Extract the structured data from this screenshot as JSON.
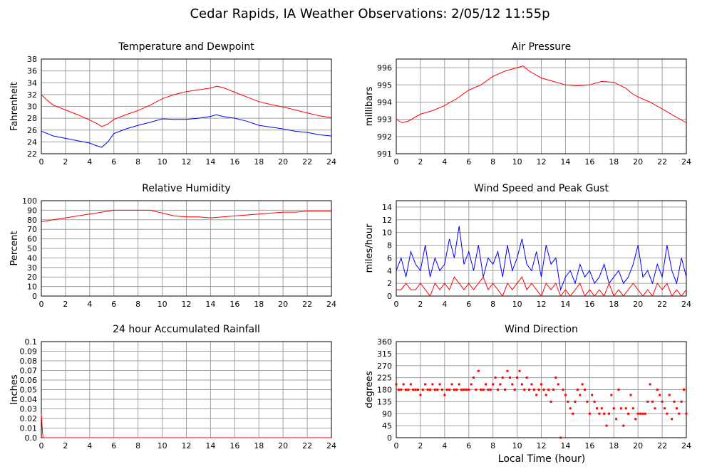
{
  "title": "Cedar Rapids, IA Weather Observations: 2/05/12 11:55p",
  "xlabel": "Local Time (hour)",
  "colors": {
    "red": "#ff0000",
    "blue": "#0000ff",
    "grid": "#a0a0a0"
  },
  "chart_data": [
    {
      "type": "line",
      "title": "Temperature and Dewpoint",
      "ylabel": "Fahrenheit",
      "xlim": [
        0,
        24
      ],
      "ylim": [
        22,
        38
      ],
      "xticks": [
        0,
        2,
        4,
        6,
        8,
        10,
        12,
        14,
        16,
        18,
        20,
        22,
        24
      ],
      "yticks": [
        22,
        24,
        26,
        28,
        30,
        32,
        34,
        36,
        38
      ],
      "series": [
        {
          "color": "red",
          "x": [
            0,
            0.5,
            1,
            2,
            3,
            4,
            4.5,
            5,
            5.5,
            6,
            7,
            8,
            9,
            10,
            11,
            12,
            13,
            14,
            14.5,
            15,
            16,
            17,
            18,
            19,
            20,
            21,
            22,
            23,
            24
          ],
          "y": [
            32,
            31,
            30.2,
            29.4,
            28.6,
            27.7,
            27.2,
            26.6,
            27,
            27.8,
            28.6,
            29.3,
            30.2,
            31.3,
            32,
            32.5,
            32.8,
            33.1,
            33.4,
            33.2,
            32.4,
            31.6,
            30.8,
            30.3,
            29.9,
            29.4,
            28.9,
            28.4,
            28.1
          ]
        },
        {
          "color": "blue",
          "x": [
            0,
            0.5,
            1,
            2,
            3,
            4,
            4.5,
            5,
            5.5,
            6,
            7,
            8,
            9,
            10,
            11,
            12,
            13,
            14,
            14.5,
            15,
            16,
            17,
            18,
            19,
            20,
            21,
            22,
            23,
            24
          ],
          "y": [
            25.8,
            25.4,
            25,
            24.6,
            24.2,
            23.8,
            23.4,
            23.1,
            24,
            25.4,
            26.2,
            26.8,
            27.3,
            27.9,
            27.8,
            27.8,
            28,
            28.3,
            28.6,
            28.3,
            28,
            27.5,
            26.8,
            26.5,
            26.2,
            25.8,
            25.6,
            25.2,
            25
          ]
        }
      ]
    },
    {
      "type": "line",
      "title": "Air Pressure",
      "ylabel": "millibars",
      "xlim": [
        0,
        24
      ],
      "ylim": [
        991,
        996.5
      ],
      "xticks": [
        0,
        2,
        4,
        6,
        8,
        10,
        12,
        14,
        16,
        18,
        20,
        22,
        24
      ],
      "yticks": [
        991,
        992,
        993,
        994,
        995,
        996
      ],
      "series": [
        {
          "color": "red",
          "x": [
            0,
            0.5,
            1,
            2,
            3,
            4,
            5,
            6,
            7,
            8,
            9,
            10,
            10.5,
            11,
            12,
            13,
            14,
            15,
            16,
            17,
            18,
            19,
            19.5,
            20,
            21,
            22,
            23,
            24
          ],
          "y": [
            993,
            992.8,
            992.9,
            993.3,
            993.5,
            993.8,
            994.2,
            994.7,
            995,
            995.5,
            995.8,
            996,
            996.1,
            995.8,
            995.4,
            995.2,
            995,
            994.95,
            995,
            995.2,
            995.15,
            994.8,
            994.5,
            994.3,
            994,
            993.6,
            993.2,
            992.8
          ]
        }
      ]
    },
    {
      "type": "line",
      "title": "Relative Humidity",
      "ylabel": "Percent",
      "xlim": [
        0,
        24
      ],
      "ylim": [
        0,
        100
      ],
      "xticks": [
        0,
        2,
        4,
        6,
        8,
        10,
        12,
        14,
        16,
        18,
        20,
        22,
        24
      ],
      "yticks": [
        0,
        10,
        20,
        30,
        40,
        50,
        60,
        70,
        80,
        90,
        100
      ],
      "series": [
        {
          "color": "red",
          "x": [
            0,
            1,
            2,
            3,
            4,
            5,
            6,
            7,
            8,
            9,
            10,
            11,
            12,
            13,
            14,
            15,
            16,
            17,
            18,
            19,
            20,
            21,
            22,
            23,
            24
          ],
          "y": [
            78,
            80,
            82,
            84,
            86,
            88,
            90,
            90,
            90,
            90,
            87,
            84,
            83,
            83,
            82,
            83,
            84,
            85,
            86,
            87,
            88,
            88,
            89,
            89,
            89
          ]
        }
      ]
    },
    {
      "type": "line",
      "title": "Wind Speed and Peak Gust",
      "ylabel": "miles/hour",
      "xlim": [
        0,
        24
      ],
      "ylim": [
        0,
        15
      ],
      "xticks": [
        0,
        2,
        4,
        6,
        8,
        10,
        12,
        14,
        16,
        18,
        20,
        22,
        24
      ],
      "yticks": [
        0,
        2,
        4,
        6,
        8,
        10,
        12,
        14
      ],
      "series": [
        {
          "color": "blue",
          "x": [
            0,
            0.4,
            0.8,
            1.2,
            1.6,
            2,
            2.4,
            2.8,
            3.2,
            3.6,
            4,
            4.4,
            4.8,
            5.2,
            5.6,
            6,
            6.4,
            6.8,
            7.2,
            7.6,
            8,
            8.4,
            8.8,
            9.2,
            9.6,
            10,
            10.4,
            10.8,
            11.2,
            11.6,
            12,
            12.4,
            12.8,
            13.2,
            13.6,
            14,
            14.4,
            14.8,
            15.2,
            15.6,
            16,
            16.4,
            16.8,
            17.2,
            17.6,
            18,
            18.4,
            18.8,
            19.2,
            19.6,
            20,
            20.4,
            20.8,
            21.2,
            21.6,
            22,
            22.4,
            22.8,
            23.2,
            23.6,
            24
          ],
          "y": [
            4,
            6,
            3,
            7,
            5,
            4,
            8,
            3,
            6,
            4,
            5,
            9,
            6,
            11,
            5,
            7,
            4,
            8,
            3,
            6,
            5,
            7,
            3,
            8,
            4,
            6,
            9,
            5,
            4,
            7,
            3,
            8,
            5,
            6,
            1,
            3,
            4,
            2,
            5,
            3,
            4,
            2,
            3,
            5,
            2,
            3,
            4,
            2,
            3,
            5,
            8,
            3,
            4,
            2,
            5,
            3,
            8,
            4,
            2,
            6,
            3
          ]
        },
        {
          "color": "red",
          "x": [
            0,
            0.4,
            0.8,
            1.2,
            1.6,
            2,
            2.4,
            2.8,
            3.2,
            3.6,
            4,
            4.4,
            4.8,
            5.2,
            5.6,
            6,
            6.4,
            6.8,
            7.2,
            7.6,
            8,
            8.4,
            8.8,
            9.2,
            9.6,
            10,
            10.4,
            10.8,
            11.2,
            11.6,
            12,
            12.4,
            12.8,
            13.2,
            13.6,
            14,
            14.4,
            14.8,
            15.2,
            15.6,
            16,
            16.4,
            16.8,
            17.2,
            17.6,
            18,
            18.4,
            18.8,
            19.2,
            19.6,
            20,
            20.4,
            20.8,
            21.2,
            21.6,
            22,
            22.4,
            22.8,
            23.2,
            23.6,
            24
          ],
          "y": [
            1,
            1,
            2,
            1,
            1,
            2,
            1,
            0,
            2,
            1,
            2,
            1,
            3,
            2,
            1,
            2,
            1,
            2,
            3,
            1,
            2,
            1,
            0,
            2,
            1,
            2,
            3,
            1,
            2,
            1,
            0,
            2,
            1,
            2,
            0,
            1,
            0,
            1,
            2,
            0,
            1,
            0,
            1,
            0,
            2,
            0,
            1,
            0,
            1,
            2,
            1,
            0,
            1,
            0,
            2,
            1,
            2,
            0,
            1,
            0,
            1
          ]
        }
      ]
    },
    {
      "type": "line",
      "title": "24 hour Accumulated Rainfall",
      "ylabel": "Inches",
      "xlim": [
        0,
        24
      ],
      "ylim": [
        0,
        0.1
      ],
      "xticks": [
        0,
        2,
        4,
        6,
        8,
        10,
        12,
        14,
        16,
        18,
        20,
        22,
        24
      ],
      "yticks": [
        "0.0",
        "0.01",
        "0.02",
        "0.03",
        "0.04",
        "0.05",
        "0.06",
        "0.07",
        "0.08",
        "0.09",
        "0.1"
      ],
      "series": [
        {
          "color": "red",
          "x": [
            0,
            0.1,
            0.15,
            24
          ],
          "y": [
            0.025,
            0.005,
            0,
            0
          ]
        }
      ]
    },
    {
      "type": "scatter",
      "title": "Wind Direction",
      "ylabel": "degrees",
      "xlim": [
        0,
        24
      ],
      "ylim": [
        0,
        360
      ],
      "xticks": [
        0,
        2,
        4,
        6,
        8,
        10,
        12,
        14,
        16,
        18,
        20,
        22,
        24
      ],
      "yticks": [
        0,
        45,
        90,
        135,
        180,
        225,
        270,
        315,
        360
      ],
      "series": [
        {
          "color": "red",
          "x": [
            0,
            0.2,
            0.4,
            0.6,
            0.8,
            1,
            1.2,
            1.4,
            1.6,
            1.8,
            2,
            2.2,
            2.4,
            2.6,
            2.8,
            3,
            3.2,
            3.4,
            3.6,
            3.8,
            4,
            4.2,
            4.4,
            4.6,
            4.8,
            5,
            5.2,
            5.4,
            5.6,
            5.8,
            6,
            6.2,
            6.4,
            6.6,
            6.8,
            7,
            7.2,
            7.4,
            7.6,
            7.8,
            8,
            8.2,
            8.4,
            8.6,
            8.8,
            9,
            9.2,
            9.4,
            9.6,
            9.8,
            10,
            10.2,
            10.4,
            10.6,
            10.8,
            11,
            11.2,
            11.4,
            11.6,
            11.8,
            12,
            12.2,
            12.4,
            12.6,
            12.8,
            13,
            13.2,
            13.4,
            13.6,
            13.8,
            14,
            14.2,
            14.4,
            14.6,
            14.8,
            15,
            15.2,
            15.4,
            15.6,
            15.8,
            16,
            16.2,
            16.4,
            16.6,
            16.8,
            17,
            17.2,
            17.4,
            17.6,
            17.8,
            18,
            18.2,
            18.4,
            18.6,
            18.8,
            19,
            19.2,
            19.4,
            19.6,
            19.8,
            20,
            20.2,
            20.4,
            20.6,
            20.8,
            21,
            21.2,
            21.4,
            21.6,
            21.8,
            22,
            22.2,
            22.4,
            22.6,
            22.8,
            23,
            23.2,
            23.4,
            23.6,
            23.8,
            24
          ],
          "y": [
            200,
            180,
            180,
            200,
            180,
            180,
            200,
            180,
            180,
            180,
            160,
            180,
            200,
            180,
            180,
            200,
            180,
            180,
            200,
            180,
            160,
            180,
            180,
            200,
            180,
            180,
            200,
            180,
            180,
            180,
            180,
            200,
            225,
            180,
            250,
            180,
            180,
            200,
            180,
            180,
            200,
            225,
            180,
            200,
            225,
            180,
            250,
            225,
            200,
            180,
            225,
            250,
            200,
            180,
            225,
            180,
            200,
            180,
            160,
            180,
            200,
            180,
            160,
            180,
            135,
            180,
            225,
            200,
            0,
            180,
            160,
            135,
            110,
            90,
            135,
            180,
            160,
            200,
            180,
            135,
            90,
            160,
            135,
            110,
            90,
            110,
            90,
            45,
            90,
            160,
            110,
            70,
            180,
            110,
            45,
            110,
            90,
            160,
            110,
            70,
            90,
            90,
            90,
            90,
            135,
            200,
            135,
            110,
            180,
            160,
            135,
            110,
            90,
            160,
            70,
            135,
            110,
            90,
            135,
            180,
            90
          ]
        }
      ]
    }
  ]
}
